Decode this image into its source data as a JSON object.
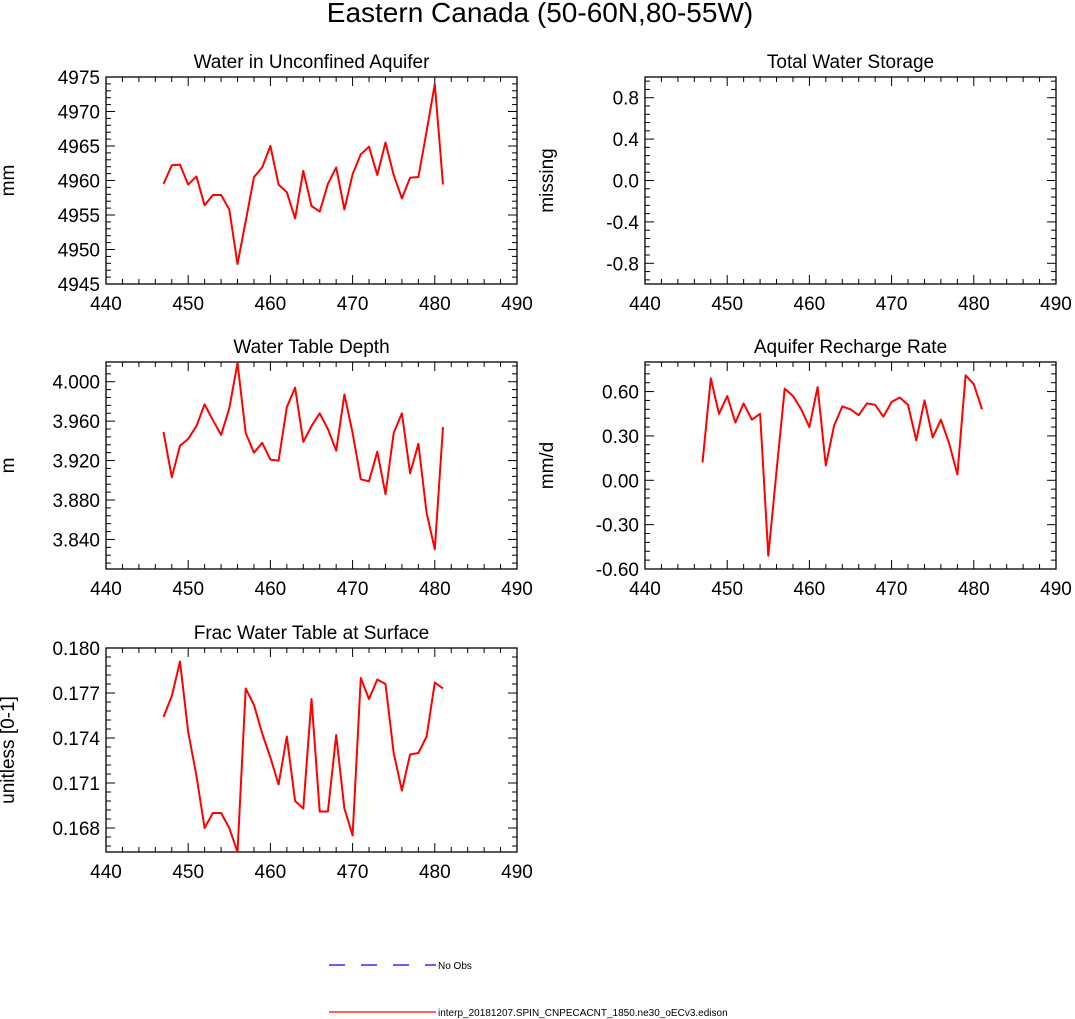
{
  "figure_title": "Eastern Canada (50-60N,80-55W)",
  "legend": {
    "obs_label": "No Obs",
    "model_label": "interp_20181207.SPIN_CNPECACNT_1850.ne30_oECv3.edison",
    "obs_color": "#0000ff",
    "model_color": "#ff0000"
  },
  "chart_data": [
    {
      "type": "line",
      "title": "Water in Unconfined Aquifer",
      "ylabel": "mm",
      "xlim": [
        440,
        490
      ],
      "ylim": [
        4945,
        4975
      ],
      "xticks": [
        440,
        450,
        460,
        470,
        480,
        490
      ],
      "yticks": [
        "4945",
        "4950",
        "4955",
        "4960",
        "4965",
        "4970",
        "4975"
      ],
      "series": [
        {
          "x": [
            447,
            448,
            449,
            450,
            451,
            452,
            453,
            454,
            455,
            456,
            457,
            458,
            459,
            460,
            461,
            462,
            463,
            464,
            465,
            466,
            467,
            468,
            469,
            470,
            471,
            472,
            473,
            474,
            475,
            476,
            477,
            478,
            479,
            480,
            481
          ],
          "y": [
            4959.5,
            4962.2,
            4962.3,
            4959.4,
            4960.6,
            4956.4,
            4957.9,
            4957.9,
            4955.8,
            4947.9,
            4954.1,
            4960.5,
            4961.9,
            4965.0,
            4959.4,
            4958.3,
            4954.5,
            4961.4,
            4956.3,
            4955.5,
            4959.5,
            4961.9,
            4955.8,
            4960.9,
            4963.8,
            4964.9,
            4960.8,
            4965.5,
            4960.8,
            4957.4,
            4960.4,
            4960.5,
            4967.1,
            4974.0,
            4959.4
          ]
        }
      ]
    },
    {
      "type": "line",
      "title": "Total Water Storage",
      "ylabel": "missing",
      "xlim": [
        440,
        490
      ],
      "ylim": [
        -1.0,
        1.0
      ],
      "xticks": [
        440,
        450,
        460,
        470,
        480,
        490
      ],
      "yticks": [
        "-0.8",
        "-0.4",
        "0.0",
        "0.4",
        "0.8"
      ],
      "series": []
    },
    {
      "type": "line",
      "title": "Water Table Depth",
      "ylabel": "m",
      "xlim": [
        440,
        490
      ],
      "ylim": [
        3.81,
        4.02
      ],
      "xticks": [
        440,
        450,
        460,
        470,
        480,
        490
      ],
      "yticks": [
        "3.840",
        "3.880",
        "3.920",
        "3.960",
        "4.000"
      ],
      "series": [
        {
          "x": [
            447,
            448,
            449,
            450,
            451,
            452,
            453,
            454,
            455,
            456,
            457,
            458,
            459,
            460,
            461,
            462,
            463,
            464,
            465,
            466,
            467,
            468,
            469,
            470,
            471,
            472,
            473,
            474,
            475,
            476,
            477,
            478,
            479,
            480,
            481
          ],
          "y": [
            3.949,
            3.903,
            3.935,
            3.942,
            3.955,
            3.977,
            3.961,
            3.946,
            3.973,
            4.019,
            3.948,
            3.928,
            3.938,
            3.921,
            3.92,
            3.974,
            3.994,
            3.939,
            3.955,
            3.968,
            3.952,
            3.93,
            3.987,
            3.948,
            3.901,
            3.899,
            3.929,
            3.886,
            3.948,
            3.968,
            3.907,
            3.937,
            3.867,
            3.83,
            3.954
          ]
        }
      ]
    },
    {
      "type": "line",
      "title": "Aquifer Recharge Rate",
      "ylabel": "mm/d",
      "xlim": [
        440,
        490
      ],
      "ylim": [
        -0.6,
        0.8
      ],
      "xticks": [
        440,
        450,
        460,
        470,
        480,
        490
      ],
      "yticks": [
        "-0.60",
        "-0.30",
        "0.00",
        "0.30",
        "0.60"
      ],
      "series": [
        {
          "x": [
            447,
            448,
            449,
            450,
            451,
            452,
            453,
            454,
            455,
            456,
            457,
            458,
            459,
            460,
            461,
            462,
            463,
            464,
            465,
            466,
            467,
            468,
            469,
            470,
            471,
            472,
            473,
            474,
            475,
            476,
            477,
            478,
            479,
            480,
            481
          ],
          "y": [
            0.12,
            0.69,
            0.45,
            0.57,
            0.39,
            0.52,
            0.41,
            0.45,
            -0.51,
            0.06,
            0.62,
            0.57,
            0.48,
            0.36,
            0.63,
            0.1,
            0.37,
            0.5,
            0.48,
            0.44,
            0.52,
            0.51,
            0.43,
            0.53,
            0.56,
            0.51,
            0.27,
            0.54,
            0.29,
            0.41,
            0.25,
            0.04,
            0.71,
            0.65,
            0.48
          ]
        }
      ]
    },
    {
      "type": "line",
      "title": "Frac Water Table at Surface",
      "ylabel": "unitless [0-1]",
      "xlim": [
        440,
        490
      ],
      "ylim": [
        0.1664,
        0.18
      ],
      "xticks": [
        440,
        450,
        460,
        470,
        480,
        490
      ],
      "yticks": [
        "0.168",
        "0.171",
        "0.174",
        "0.177",
        "0.180"
      ],
      "series": [
        {
          "x": [
            447,
            448,
            449,
            450,
            451,
            452,
            453,
            454,
            455,
            456,
            457,
            458,
            459,
            460,
            461,
            462,
            463,
            464,
            465,
            466,
            467,
            468,
            469,
            470,
            471,
            472,
            473,
            474,
            475,
            476,
            477,
            478,
            479,
            480,
            481
          ],
          "y": [
            0.1754,
            0.1768,
            0.1791,
            0.1744,
            0.1715,
            0.168,
            0.169,
            0.169,
            0.168,
            0.1664,
            0.1773,
            0.1762,
            0.1743,
            0.1727,
            0.1709,
            0.1741,
            0.1698,
            0.1693,
            0.1766,
            0.1691,
            0.1691,
            0.1742,
            0.1693,
            0.1675,
            0.178,
            0.1766,
            0.1779,
            0.1776,
            0.173,
            0.1705,
            0.1729,
            0.173,
            0.1741,
            0.1777,
            0.1773
          ]
        }
      ]
    }
  ]
}
